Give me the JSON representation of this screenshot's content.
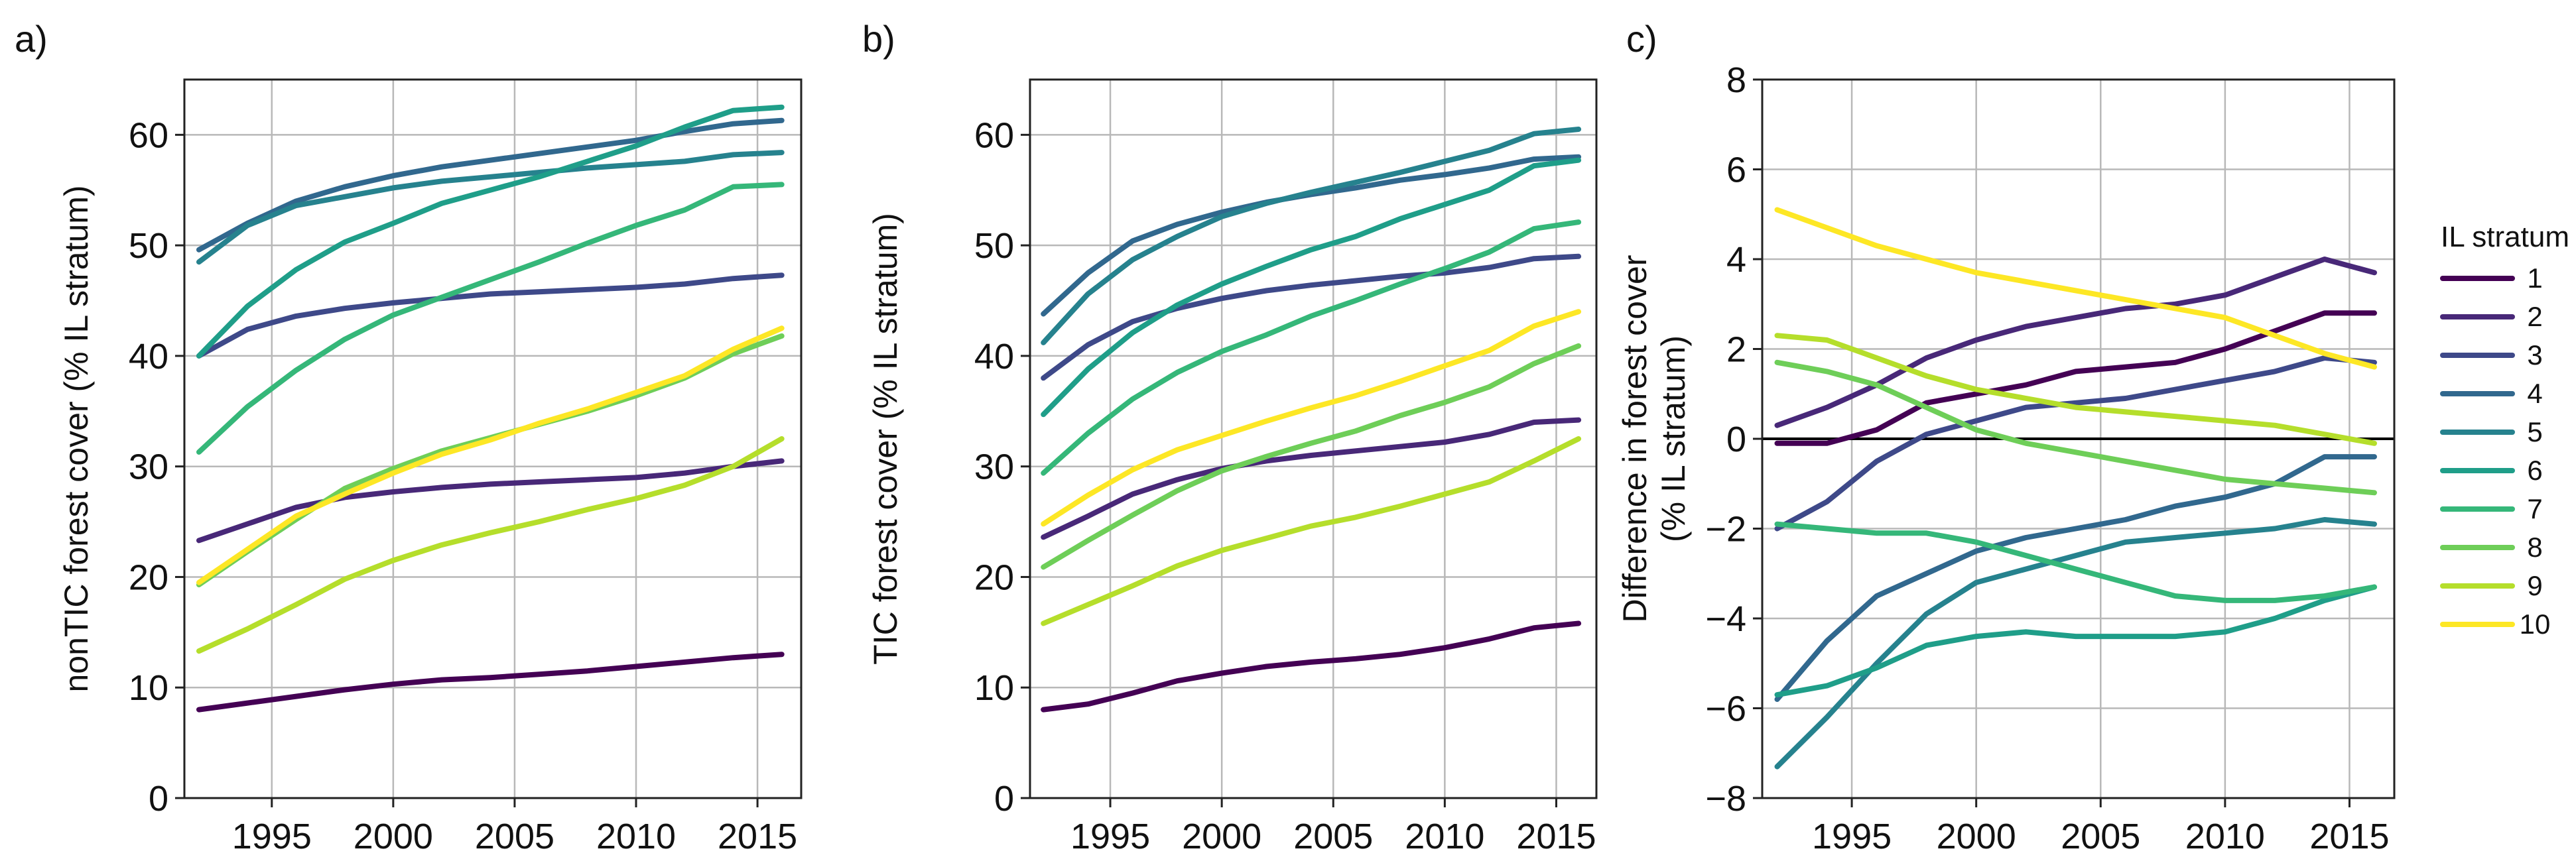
{
  "chart_data": [
    {
      "type": "line",
      "panel_label": "a)",
      "title": "",
      "xlabel": "",
      "ylabel": "nonTIC forest cover (% IL stratum)",
      "xlim": [
        1991.4,
        2016.8
      ],
      "ylim": [
        0,
        65
      ],
      "xticks": [
        1995,
        2000,
        2005,
        2010,
        2015
      ],
      "yticks": [
        0,
        10,
        20,
        30,
        40,
        50,
        60
      ],
      "grid": true,
      "x": [
        1992,
        1994,
        1996,
        1998,
        2000,
        2002,
        2004,
        2006,
        2008,
        2010,
        2012,
        2014,
        2016
      ],
      "series": [
        {
          "name": "1",
          "values": [
            8.0,
            8.6,
            9.2,
            9.8,
            10.3,
            10.7,
            10.9,
            11.2,
            11.5,
            11.9,
            12.3,
            12.7,
            13.0
          ]
        },
        {
          "name": "2",
          "values": [
            23.3,
            24.8,
            26.3,
            27.2,
            27.7,
            28.1,
            28.4,
            28.6,
            28.8,
            29.0,
            29.4,
            30.0,
            30.5
          ]
        },
        {
          "name": "3",
          "values": [
            40.0,
            42.4,
            43.6,
            44.3,
            44.8,
            45.2,
            45.6,
            45.8,
            46.0,
            46.2,
            46.5,
            47.0,
            47.3
          ]
        },
        {
          "name": "4",
          "values": [
            49.6,
            52.0,
            54.0,
            55.3,
            56.3,
            57.1,
            57.7,
            58.3,
            58.9,
            59.5,
            60.3,
            61.0,
            61.3
          ]
        },
        {
          "name": "5",
          "values": [
            48.5,
            51.8,
            53.6,
            54.4,
            55.2,
            55.8,
            56.2,
            56.6,
            57.0,
            57.3,
            57.6,
            58.2,
            58.4
          ]
        },
        {
          "name": "6",
          "values": [
            40.0,
            44.5,
            47.8,
            50.3,
            52.0,
            53.8,
            55.0,
            56.2,
            57.6,
            59.0,
            60.7,
            62.2,
            62.5
          ]
        },
        {
          "name": "7",
          "values": [
            31.3,
            35.4,
            38.7,
            41.5,
            43.7,
            45.3,
            46.9,
            48.5,
            50.2,
            51.8,
            53.2,
            55.3,
            55.5
          ]
        },
        {
          "name": "8",
          "values": [
            19.3,
            22.3,
            25.2,
            28.0,
            29.8,
            31.4,
            32.6,
            33.8,
            35.0,
            36.4,
            38.0,
            40.2,
            41.8
          ]
        },
        {
          "name": "9",
          "values": [
            13.3,
            15.3,
            17.5,
            19.8,
            21.5,
            22.9,
            24.0,
            25.0,
            26.1,
            27.1,
            28.3,
            30.0,
            32.5
          ]
        },
        {
          "name": "10",
          "values": [
            19.5,
            22.5,
            25.5,
            27.5,
            29.4,
            31.1,
            32.4,
            33.9,
            35.2,
            36.7,
            38.2,
            40.6,
            42.5
          ]
        }
      ]
    },
    {
      "type": "line",
      "panel_label": "b)",
      "title": "",
      "xlabel": "",
      "ylabel": "TIC forest cover (% IL stratum)",
      "xlim": [
        1991.4,
        2016.8
      ],
      "ylim": [
        0,
        65
      ],
      "xticks": [
        1995,
        2000,
        2005,
        2010,
        2015
      ],
      "yticks": [
        0,
        10,
        20,
        30,
        40,
        50,
        60
      ],
      "grid": true,
      "x": [
        1992,
        1994,
        1996,
        1998,
        2000,
        2002,
        2004,
        2006,
        2008,
        2010,
        2012,
        2014,
        2016
      ],
      "series": [
        {
          "name": "1",
          "values": [
            8.0,
            8.5,
            9.5,
            10.6,
            11.3,
            11.9,
            12.3,
            12.6,
            13.0,
            13.6,
            14.4,
            15.4,
            15.8
          ]
        },
        {
          "name": "2",
          "values": [
            23.6,
            25.5,
            27.5,
            28.8,
            29.8,
            30.5,
            31.0,
            31.4,
            31.8,
            32.2,
            32.9,
            34.0,
            34.2
          ]
        },
        {
          "name": "3",
          "values": [
            38.0,
            41.0,
            43.1,
            44.3,
            45.2,
            45.9,
            46.4,
            46.8,
            47.2,
            47.5,
            48.0,
            48.8,
            49.0
          ]
        },
        {
          "name": "4",
          "values": [
            43.8,
            47.5,
            50.4,
            51.9,
            53.0,
            53.9,
            54.6,
            55.2,
            55.9,
            56.4,
            57.0,
            57.8,
            58.0
          ]
        },
        {
          "name": "5",
          "values": [
            41.2,
            45.6,
            48.7,
            50.8,
            52.6,
            53.8,
            54.8,
            55.7,
            56.6,
            57.6,
            58.6,
            60.1,
            60.5
          ]
        },
        {
          "name": "6",
          "values": [
            34.7,
            38.8,
            42.1,
            44.6,
            46.5,
            48.1,
            49.6,
            50.8,
            52.4,
            53.7,
            55.0,
            57.2,
            57.7
          ]
        },
        {
          "name": "7",
          "values": [
            29.4,
            33.0,
            36.1,
            38.5,
            40.4,
            41.9,
            43.6,
            45.0,
            46.5,
            47.9,
            49.4,
            51.5,
            52.1
          ]
        },
        {
          "name": "8",
          "values": [
            20.9,
            23.3,
            25.6,
            27.8,
            29.6,
            30.9,
            32.1,
            33.2,
            34.6,
            35.8,
            37.2,
            39.3,
            40.9
          ]
        },
        {
          "name": "9",
          "values": [
            15.8,
            17.5,
            19.2,
            21.0,
            22.4,
            23.5,
            24.6,
            25.4,
            26.4,
            27.5,
            28.6,
            30.5,
            32.5
          ]
        },
        {
          "name": "10",
          "values": [
            24.8,
            27.4,
            29.7,
            31.5,
            32.8,
            34.1,
            35.3,
            36.4,
            37.7,
            39.1,
            40.5,
            42.7,
            44.0
          ]
        }
      ]
    },
    {
      "type": "line",
      "panel_label": "c)",
      "title": "",
      "xlabel": "",
      "ylabel": "Difference in forest cover (% IL stratum)",
      "xlim": [
        1991.4,
        2016.8
      ],
      "ylim": [
        -8,
        8
      ],
      "xticks": [
        1995,
        2000,
        2005,
        2010,
        2015
      ],
      "yticks": [
        -8,
        -6,
        -4,
        -2,
        0,
        2,
        4,
        6,
        8
      ],
      "grid": true,
      "zero_line": true,
      "legend": {
        "title": "IL stratum",
        "position": "outside-right"
      },
      "x": [
        1992,
        1994,
        1996,
        1998,
        2000,
        2002,
        2004,
        2006,
        2008,
        2010,
        2012,
        2014,
        2016
      ],
      "series": [
        {
          "name": "1",
          "values": [
            -0.1,
            -0.1,
            0.2,
            0.8,
            1.0,
            1.2,
            1.5,
            1.6,
            1.7,
            2.0,
            2.4,
            2.8,
            2.8
          ]
        },
        {
          "name": "2",
          "values": [
            0.3,
            0.7,
            1.2,
            1.8,
            2.2,
            2.5,
            2.7,
            2.9,
            3.0,
            3.2,
            3.6,
            4.0,
            3.7
          ]
        },
        {
          "name": "3",
          "values": [
            -2.0,
            -1.4,
            -0.5,
            0.1,
            0.4,
            0.7,
            0.8,
            0.9,
            1.1,
            1.3,
            1.5,
            1.8,
            1.7
          ]
        },
        {
          "name": "4",
          "values": [
            -5.8,
            -4.5,
            -3.5,
            -3.0,
            -2.5,
            -2.2,
            -2.0,
            -1.8,
            -1.5,
            -1.3,
            -1.0,
            -0.4,
            -0.4
          ]
        },
        {
          "name": "5",
          "values": [
            -7.3,
            -6.2,
            -5.0,
            -3.9,
            -3.2,
            -2.9,
            -2.6,
            -2.3,
            -2.2,
            -2.1,
            -2.0,
            -1.8,
            -1.9
          ]
        },
        {
          "name": "6",
          "values": [
            -5.7,
            -5.5,
            -5.1,
            -4.6,
            -4.4,
            -4.3,
            -4.4,
            -4.4,
            -4.4,
            -4.3,
            -4.0,
            -3.6,
            -3.3
          ]
        },
        {
          "name": "7",
          "values": [
            -1.9,
            -2.0,
            -2.1,
            -2.1,
            -2.3,
            -2.6,
            -2.9,
            -3.2,
            -3.5,
            -3.6,
            -3.6,
            -3.5,
            -3.3
          ]
        },
        {
          "name": "8",
          "values": [
            1.7,
            1.5,
            1.2,
            0.7,
            0.2,
            -0.1,
            -0.3,
            -0.5,
            -0.7,
            -0.9,
            -1.0,
            -1.1,
            -1.2
          ]
        },
        {
          "name": "9",
          "values": [
            2.3,
            2.2,
            1.8,
            1.4,
            1.1,
            0.9,
            0.7,
            0.6,
            0.5,
            0.4,
            0.3,
            0.1,
            -0.1
          ]
        },
        {
          "name": "10",
          "values": [
            5.1,
            4.7,
            4.3,
            4.0,
            3.7,
            3.5,
            3.3,
            3.1,
            2.9,
            2.7,
            2.3,
            1.9,
            1.6
          ]
        }
      ]
    }
  ],
  "colors": {
    "1": "#440154",
    "2": "#482878",
    "3": "#3e4989",
    "4": "#31688e",
    "5": "#26828e",
    "6": "#1f9e89",
    "7": "#35b779",
    "8": "#6ece58",
    "9": "#b5de2b",
    "10": "#fde725"
  }
}
